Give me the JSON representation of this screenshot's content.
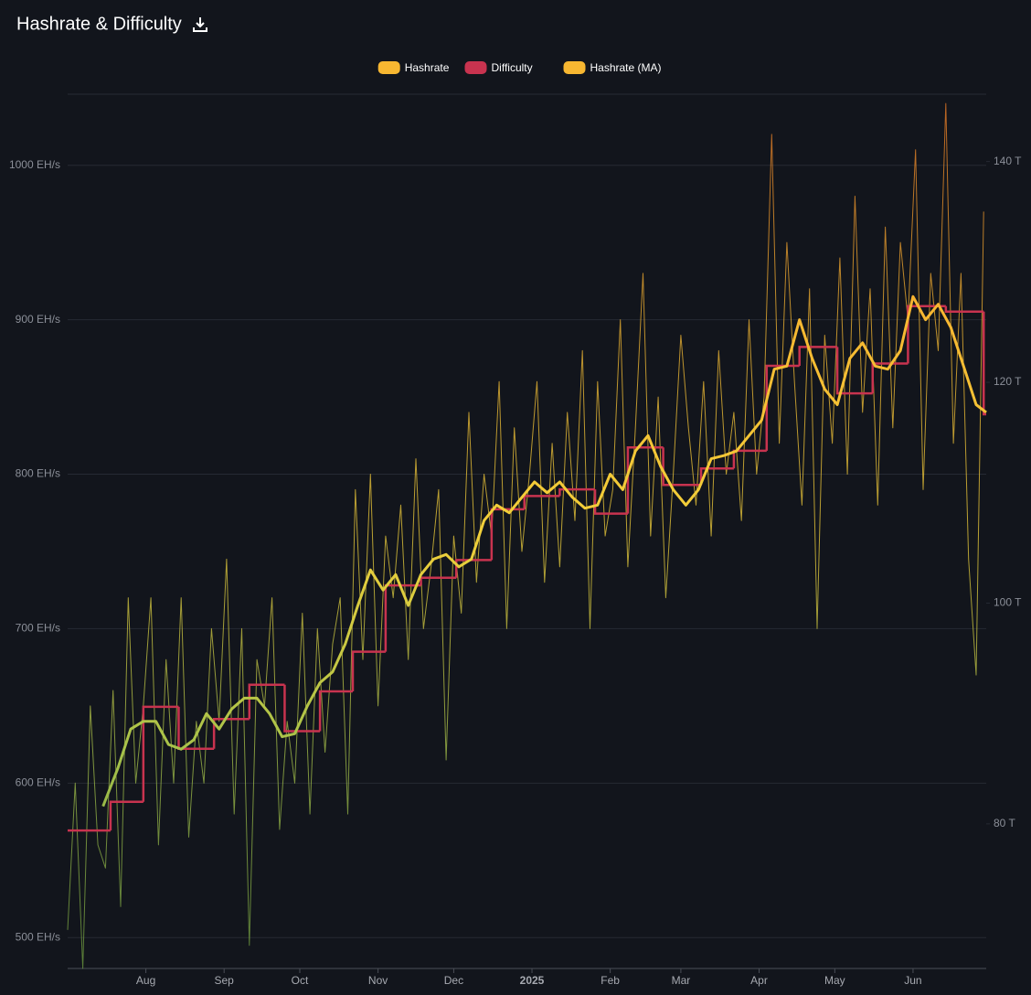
{
  "chart_data": {
    "type": "line",
    "title": "Hashrate & Difficulty",
    "background": "#12151c",
    "grid": true,
    "legend": "top",
    "gradient": [
      "#6f9e40",
      "#a7c24a",
      "#f2d03a",
      "#f7b731",
      "#f07a24"
    ],
    "xlim": [
      0,
      364
    ],
    "xticks": [
      {
        "value": 31,
        "label": "Aug"
      },
      {
        "value": 62,
        "label": "Sep"
      },
      {
        "value": 92,
        "label": "Oct"
      },
      {
        "value": 123,
        "label": "Nov"
      },
      {
        "value": 153,
        "label": "Dec"
      },
      {
        "value": 184,
        "label": "2025"
      },
      {
        "value": 215,
        "label": "Feb"
      },
      {
        "value": 243,
        "label": "Mar"
      },
      {
        "value": 274,
        "label": "Apr"
      },
      {
        "value": 304,
        "label": "May"
      },
      {
        "value": 335,
        "label": "Jun"
      }
    ],
    "ylim": [
      480,
      1046
    ],
    "yticks": [
      {
        "value": 500,
        "label": "500 EH/s"
      },
      {
        "value": 600,
        "label": "600 EH/s"
      },
      {
        "value": 700,
        "label": "700 EH/s"
      },
      {
        "value": 800,
        "label": "800 EH/s"
      },
      {
        "value": 900,
        "label": "900 EH/s"
      },
      {
        "value": 1000,
        "label": "1000 EH/s"
      }
    ],
    "y2lim": [
      66.9,
      146.1
    ],
    "y2ticks": [
      {
        "value": 80,
        "label": "80 T"
      },
      {
        "value": 100,
        "label": "100 T"
      },
      {
        "value": 120,
        "label": "120 T"
      },
      {
        "value": 140,
        "label": "140 T"
      }
    ],
    "series": [
      {
        "name": "Hashrate",
        "color": "#f7b731",
        "style": "thin",
        "x": [
          0,
          3,
          6,
          9,
          12,
          15,
          18,
          21,
          24,
          27,
          30,
          33,
          36,
          39,
          42,
          45,
          48,
          51,
          54,
          57,
          60,
          63,
          66,
          69,
          72,
          75,
          78,
          81,
          84,
          87,
          90,
          93,
          96,
          99,
          102,
          105,
          108,
          111,
          114,
          117,
          120,
          123,
          126,
          129,
          132,
          135,
          138,
          141,
          144,
          147,
          150,
          153,
          156,
          159,
          162,
          165,
          168,
          171,
          174,
          177,
          180,
          183,
          186,
          189,
          192,
          195,
          198,
          201,
          204,
          207,
          210,
          213,
          216,
          219,
          222,
          225,
          228,
          231,
          234,
          237,
          240,
          243,
          246,
          249,
          252,
          255,
          258,
          261,
          264,
          267,
          270,
          273,
          276,
          279,
          282,
          285,
          288,
          291,
          294,
          297,
          300,
          303,
          306,
          309,
          312,
          315,
          318,
          321,
          324,
          327,
          330,
          333,
          336,
          339,
          342,
          345,
          348,
          351,
          354,
          357,
          360,
          363
        ],
        "values": [
          505,
          600,
          480,
          650,
          560,
          545,
          660,
          520,
          720,
          600,
          650,
          720,
          560,
          680,
          600,
          720,
          565,
          640,
          600,
          700,
          640,
          745,
          580,
          700,
          495,
          680,
          650,
          720,
          570,
          640,
          600,
          710,
          580,
          700,
          620,
          690,
          720,
          580,
          790,
          680,
          800,
          650,
          760,
          720,
          780,
          680,
          810,
          700,
          740,
          790,
          615,
          760,
          710,
          840,
          730,
          800,
          760,
          860,
          700,
          830,
          750,
          800,
          860,
          730,
          820,
          740,
          840,
          770,
          880,
          700,
          860,
          760,
          790,
          900,
          740,
          830,
          930,
          760,
          850,
          720,
          800,
          890,
          830,
          780,
          860,
          760,
          880,
          800,
          840,
          770,
          900,
          800,
          850,
          1020,
          820,
          950,
          860,
          780,
          920,
          700,
          890,
          820,
          940,
          800,
          980,
          840,
          920,
          780,
          960,
          830,
          950,
          900,
          1010,
          790,
          930,
          880,
          1040,
          820,
          930,
          745,
          670,
          970
        ]
      },
      {
        "name": "Difficulty",
        "color": "#c8334f",
        "axis": "y2",
        "step": true,
        "x": [
          0,
          17,
          30,
          44,
          58,
          72,
          86,
          100,
          113,
          126,
          140,
          154,
          168,
          181,
          195,
          209,
          222,
          236,
          251,
          264,
          277,
          290,
          305,
          319,
          333,
          348,
          363
        ],
        "values": [
          79.4,
          82.0,
          90.6,
          86.8,
          89.5,
          92.6,
          88.4,
          92.0,
          95.6,
          101.6,
          102.3,
          103.9,
          108.5,
          109.7,
          110.3,
          108.1,
          114.1,
          110.7,
          112.2,
          113.8,
          121.5,
          123.2,
          119.0,
          121.7,
          126.9,
          126.4,
          117.1
        ]
      },
      {
        "name": "Hashrate (MA)",
        "color": "#f7b731",
        "style": "thick",
        "x": [
          14,
          20,
          25,
          30,
          35,
          40,
          45,
          50,
          55,
          60,
          65,
          70,
          75,
          80,
          85,
          90,
          95,
          100,
          105,
          110,
          115,
          120,
          125,
          130,
          135,
          140,
          145,
          150,
          155,
          160,
          165,
          170,
          175,
          180,
          185,
          190,
          195,
          200,
          205,
          210,
          215,
          220,
          225,
          230,
          235,
          240,
          245,
          250,
          255,
          260,
          265,
          270,
          275,
          280,
          285,
          290,
          295,
          300,
          305,
          310,
          315,
          320,
          325,
          330,
          335,
          340,
          345,
          350,
          355,
          360,
          364
        ],
        "values": [
          585,
          610,
          635,
          640,
          640,
          625,
          622,
          628,
          645,
          635,
          648,
          655,
          655,
          645,
          630,
          632,
          650,
          665,
          672,
          690,
          715,
          738,
          725,
          735,
          715,
          735,
          745,
          748,
          740,
          745,
          770,
          780,
          775,
          785,
          795,
          788,
          795,
          785,
          778,
          780,
          800,
          790,
          815,
          825,
          805,
          790,
          780,
          790,
          810,
          812,
          815,
          825,
          835,
          868,
          870,
          900,
          875,
          855,
          845,
          875,
          885,
          870,
          868,
          880,
          915,
          900,
          910,
          895,
          870,
          845,
          840
        ]
      }
    ]
  }
}
